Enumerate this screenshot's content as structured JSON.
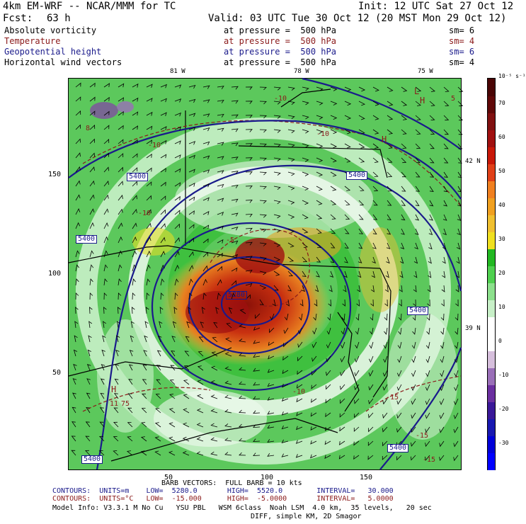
{
  "header": {
    "model": "4km EM-WRF -- NCAR/MMM for TC",
    "init": "Init: 12 UTC Sat 27 Oct 12",
    "fcst_label": "Fcst:",
    "fcst_hours": "63 h",
    "valid": "Valid: 03 UTC Tue 30 Oct 12 (20 MST Mon 29 Oct 12)"
  },
  "fields": [
    {
      "name": "Absolute vorticity",
      "level": "at pressure =  500 hPa",
      "sm": "sm= 6",
      "color": "#000000"
    },
    {
      "name": "Temperature",
      "level": "at pressure =  500 hPa",
      "sm": "sm= 4",
      "color": "#8b1a1a"
    },
    {
      "name": "Geopotential height",
      "level": "at pressure =  500 hPa",
      "sm": "sm= 6",
      "color": "#1a1a8b"
    },
    {
      "name": "Horizontal wind vectors",
      "level": "at pressure =  500 hPa",
      "sm": "sm= 4",
      "color": "#000000"
    }
  ],
  "map": {
    "lon_labels": [
      "81 W",
      "78 W",
      "75 W"
    ],
    "lat_labels": [
      "42 N",
      "39 N"
    ],
    "x_ticks": [
      "50",
      "100",
      "150"
    ],
    "y_ticks": [
      "150",
      "100",
      "50"
    ],
    "height_labels": [
      "5400",
      "5400",
      "5400",
      "5400",
      "5400",
      "5400",
      "5280"
    ],
    "temp_labels": [
      "-10",
      "-10",
      "-10",
      "-10",
      "-5",
      "-15",
      "-15",
      "-15",
      "-10"
    ],
    "pressure_labels": [
      "H",
      "H",
      "L",
      "H"
    ],
    "vort_labels": [
      "8",
      "11",
      "75",
      "5"
    ]
  },
  "colorbar": {
    "units": "10⁻⁵ s⁻¹",
    "tick_labels": [
      "70",
      "60",
      "50",
      "40",
      "30",
      "20",
      "10",
      "0",
      "-10",
      "-20",
      "-30"
    ],
    "levels": [
      {
        "value": "-35",
        "color": "#0000ff"
      },
      {
        "value": "-30",
        "color": "#0000d8"
      },
      {
        "value": "-25",
        "color": "#1818b0"
      },
      {
        "value": "-20",
        "color": "#3a1898"
      },
      {
        "value": "-15",
        "color": "#6b2fa0"
      },
      {
        "value": "-10",
        "color": "#9a6fb8"
      },
      {
        "value": "-5",
        "color": "#d6bfdc"
      },
      {
        "value": "0",
        "color": "#ffffff"
      },
      {
        "value": "5",
        "color": "#ffffff"
      },
      {
        "value": "10",
        "color": "#c8f0c8"
      },
      {
        "value": "15",
        "color": "#8ce08c"
      },
      {
        "value": "20",
        "color": "#4fd04f"
      },
      {
        "value": "25",
        "color": "#22b822"
      },
      {
        "value": "30",
        "color": "#f0e020"
      },
      {
        "value": "35",
        "color": "#f0c030"
      },
      {
        "value": "40",
        "color": "#f0a020"
      },
      {
        "value": "45",
        "color": "#f08020"
      },
      {
        "value": "50",
        "color": "#e04018"
      },
      {
        "value": "55",
        "color": "#c81808"
      },
      {
        "value": "60",
        "color": "#a01010"
      },
      {
        "value": "65",
        "color": "#801010"
      },
      {
        "value": "70",
        "color": "#600808"
      },
      {
        "value": "75",
        "color": "#4a0505"
      }
    ]
  },
  "footer": {
    "barb": "BARB VECTORS:  FULL BARB = 10 kts",
    "contours1": "CONTOURS:  UNITS=m    LOW=  5280.0       HIGH=  5520.0        INTERVAL=   30.000",
    "contours2": "CONTOURS:  UNITS=°C   LOW=  -15.000      HIGH=  -5.0000       INTERVAL=   5.0000",
    "model_info": "Model Info: V3.3.1 M No Cu   YSU PBL   WSM 6class  Noah LSM  4.0 km,  35 levels,   20 sec",
    "model_info2": "DIFF, simple KM, 2D Smagor"
  }
}
